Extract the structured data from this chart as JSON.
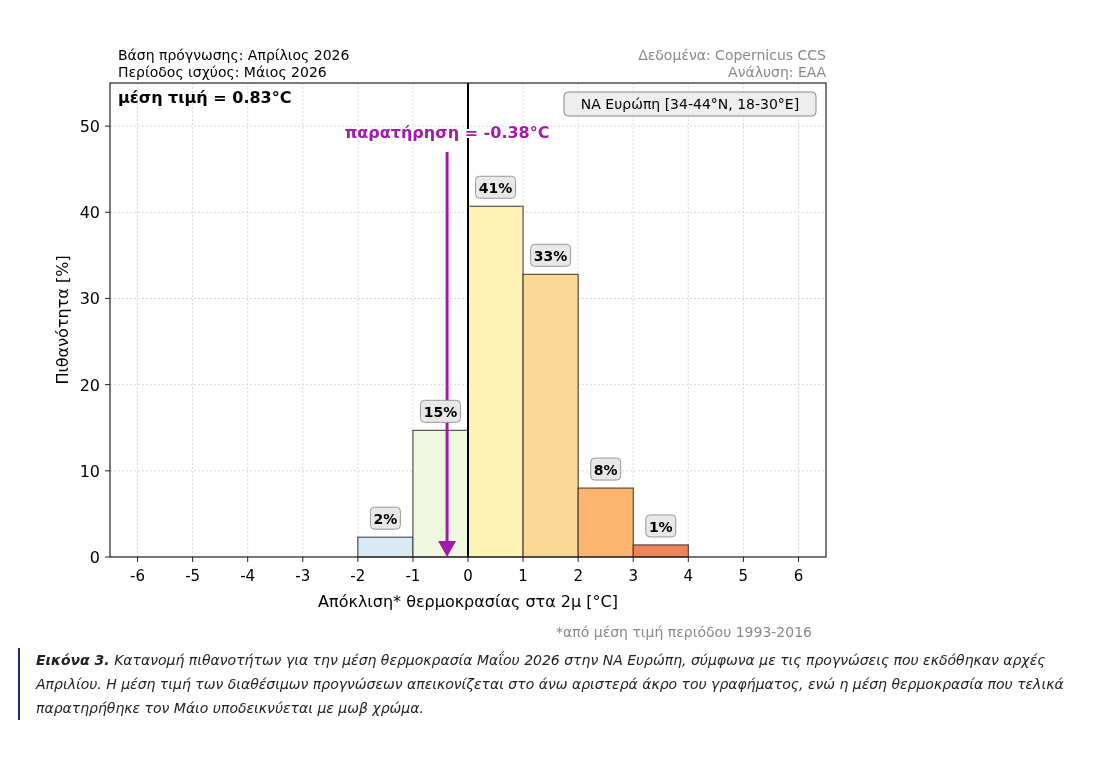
{
  "chart_data": {
    "type": "histogram",
    "title": "Βάση πρόγνωσης: Απρίλιος 2026",
    "subtitle": "Περίοδος ισχύος: Μάιος 2026",
    "xlabel": "Απόκλιση* θερμοκρασίας στα 2μ [°C]",
    "ylabel": "Πιθανότητα [%]",
    "bins": [
      -2,
      -1,
      0,
      1,
      2,
      3,
      4
    ],
    "values": [
      2.3,
      14.7,
      40.7,
      32.8,
      8.0,
      1.4
    ],
    "value_labels": [
      "2%",
      "15%",
      "41%",
      "33%",
      "8%",
      "1%"
    ],
    "colors": [
      "#d8ebf2",
      "#f0f8df",
      "#fdf2b4",
      "#fcd895",
      "#fdb470",
      "#f08458"
    ],
    "xlim": [
      -6.5,
      6.5
    ],
    "xticks": [
      -6,
      -5,
      -4,
      -3,
      -2,
      -1,
      0,
      1,
      2,
      3,
      4,
      5,
      6
    ],
    "ylim": [
      0,
      55
    ],
    "yticks": [
      0,
      10,
      20,
      30,
      40,
      50
    ],
    "grid": true,
    "ref_lines": [
      {
        "axis": "x",
        "value": 0,
        "color": "#000000"
      },
      {
        "axis": "x",
        "value": -0.38,
        "label": "παρατήρηση = -0.38°C",
        "color": "#a41aaa"
      }
    ],
    "annotations": [
      "μέση τιμή = 0.83°C",
      "ΝΑ Ευρώπη [34-44°N, 18-30°E]",
      "Δεδομένα: Copernicus CCS",
      "Ανάλυση: ΕΑΑ",
      "*από μέση τιμή περιόδου 1993-2016",
      "Εικόνα 3. Κατανομή πιθανοτήτων για την μέση θερμοκρασία Μαΐου 2026 στην ΝΑ Ευρώπη, σύμφωνα με τις προγνώσεις που εκδόθηκαν αρχές Απριλίου. Η μέση τιμή των διαθέσιμων προγνώσεων απεικονίζεται στο άνω αριστερά άκρο του γραφήματος, ενώ η μέση θερμοκρασία που τελικά παρατηρήθηκε τον Μάιο υποδεικνύεται με μωβ χρώμα."
    ]
  }
}
